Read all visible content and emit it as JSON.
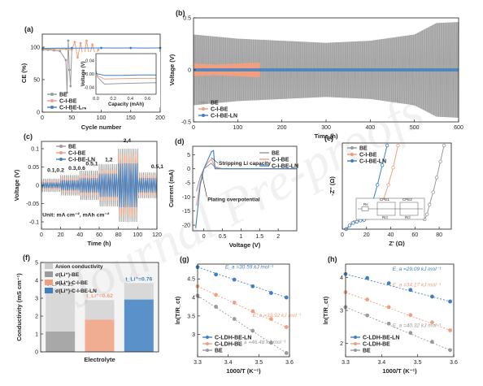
{
  "watermark": "Journal Pre-proofs",
  "colors": {
    "be": "#9a9a9a",
    "cibe": "#f0a080",
    "ln": "#3f7fc1",
    "text": "#222222"
  },
  "chart_data": [
    {
      "id": "a",
      "panel_label": "(a)",
      "type": "line",
      "xlabel": "Cycle number",
      "ylabel": "CE (%)",
      "xlim": [
        0,
        200
      ],
      "ylim": [
        0,
        120
      ],
      "xticks": [
        0,
        50,
        100,
        150,
        200
      ],
      "yticks": [
        0,
        50,
        100
      ],
      "legend": [
        "BE",
        "C-I-BE",
        "C-I-BE-LN"
      ],
      "legend_position": "bottom-left",
      "series": [
        {
          "name": "BE",
          "x": [
            1,
            10,
            20,
            30,
            40,
            42,
            44,
            46,
            48,
            50
          ],
          "y": [
            96,
            96,
            95,
            94,
            80,
            30,
            110,
            65,
            40,
            98
          ]
        },
        {
          "name": "C-I-BE",
          "x": [
            1,
            20,
            40,
            50,
            55,
            60,
            65,
            70,
            75,
            80,
            85,
            90,
            95
          ],
          "y": [
            97,
            97,
            97,
            96,
            108,
            84,
            106,
            80,
            110,
            86,
            104,
            88,
            96
          ]
        },
        {
          "name": "C-I-BE-LN",
          "x": [
            1,
            25,
            50,
            75,
            100,
            125,
            150,
            175,
            200
          ],
          "y": [
            98,
            98.5,
            98.5,
            98.6,
            98.7,
            98.6,
            98.7,
            98.6,
            98.7
          ]
        }
      ],
      "inset": {
        "xlabel": "Capacity (mAh)",
        "ylabel": "Voltage (V)",
        "xlim": [
          0,
          0.7
        ],
        "ylim": [
          -0.06,
          0.06
        ],
        "xticks": [
          0.0,
          0.2,
          0.4,
          0.6
        ],
        "yticks": [
          0.04,
          0.0,
          -0.04
        ],
        "series": [
          {
            "name": "BE",
            "x": [
              0,
              0.02,
              0.1,
              0.3,
              0.5,
              0.7
            ],
            "y": [
              0.01,
              -0.01,
              -0.03,
              -0.028,
              -0.027,
              -0.026
            ]
          },
          {
            "name": "C-I-BE",
            "x": [
              0,
              0.02,
              0.1,
              0.3,
              0.5,
              0.7
            ],
            "y": [
              0.005,
              -0.005,
              -0.015,
              -0.014,
              -0.013,
              -0.013
            ]
          },
          {
            "name": "C-I-BE-LN",
            "x": [
              0,
              0.02,
              0.1,
              0.3,
              0.5,
              0.7
            ],
            "y": [
              0.003,
              0.0,
              -0.004,
              -0.004,
              -0.003,
              -0.003
            ]
          }
        ]
      }
    },
    {
      "id": "b",
      "panel_label": "(b)",
      "type": "line",
      "xlabel": "Time (h)",
      "ylabel": "Voltage (V)",
      "xlim": [
        0,
        600
      ],
      "ylim": [
        -0.5,
        0.5
      ],
      "xticks": [
        0,
        100,
        200,
        300,
        400,
        500,
        600
      ],
      "yticks": [
        -0.5,
        0.0,
        0.5
      ],
      "legend": [
        "BE",
        "C-I-BE",
        "C-I-BE-LN"
      ],
      "legend_position": "bottom-left",
      "series": [
        {
          "name": "BE",
          "x": [
            0,
            100,
            200,
            300,
            400,
            500,
            550,
            600
          ],
          "y_amplitude": [
            0.34,
            0.3,
            0.28,
            0.26,
            0.28,
            0.34,
            0.45,
            0.46
          ]
        },
        {
          "name": "C-I-BE",
          "x": [
            0,
            50,
            100,
            150
          ],
          "y_amplitude": [
            0.06,
            0.05,
            0.06,
            0.07
          ]
        },
        {
          "name": "C-I-BE-LN",
          "x": [
            0,
            200,
            400,
            600
          ],
          "y_amplitude": [
            0.015,
            0.015,
            0.015,
            0.015
          ]
        }
      ]
    },
    {
      "id": "c",
      "panel_label": "(c)",
      "type": "line",
      "xlabel": "Time (h)",
      "ylabel": "Voltage (V)",
      "xlim": [
        0,
        120
      ],
      "ylim": [
        -0.12,
        0.12
      ],
      "xticks": [
        0,
        20,
        40,
        60,
        80,
        100,
        120
      ],
      "yticks": [
        -0.1,
        -0.05,
        0.0,
        0.05,
        0.1
      ],
      "legend": [
        "BE",
        "C-I-BE",
        "C-I-BE-LN"
      ],
      "legend_position": "top-left",
      "annotations": [
        {
          "text": "0.1,0.2",
          "x": 6,
          "y": 0.037
        },
        {
          "text": "0.3,0.6",
          "x": 28,
          "y": 0.042
        },
        {
          "text": "0.5,1",
          "x": 46,
          "y": 0.055
        },
        {
          "text": "1,2",
          "x": 66,
          "y": 0.066
        },
        {
          "text": "2,4",
          "x": 85,
          "y": 0.118
        },
        {
          "text": "0.5,1",
          "x": 114,
          "y": 0.047
        },
        {
          "text": "Unit: mA cm⁻², mAh cm⁻²",
          "x": 1,
          "y": -0.085
        }
      ],
      "segments": [
        {
          "t": [
            0,
            20
          ],
          "BE": 0.018,
          "CIBE": 0.012,
          "LN": 0.008
        },
        {
          "t": [
            20,
            40
          ],
          "BE": 0.028,
          "CIBE": 0.02,
          "LN": 0.014
        },
        {
          "t": [
            40,
            60
          ],
          "BE": 0.04,
          "CIBE": 0.028,
          "LN": 0.02
        },
        {
          "t": [
            60,
            80
          ],
          "BE": 0.058,
          "CIBE": 0.042,
          "LN": 0.032
        },
        {
          "t": [
            80,
            100
          ],
          "BE": 0.1,
          "CIBE": 0.085,
          "LN": 0.06
        },
        {
          "t": [
            100,
            120
          ],
          "BE": 0.035,
          "CIBE": 0.028,
          "LN": 0.02
        }
      ]
    },
    {
      "id": "d",
      "panel_label": "(d)",
      "type": "line",
      "xlabel": "Voltage (V)",
      "ylabel": "Current (mA)",
      "xlim": [
        -0.3,
        2.5
      ],
      "ylim": [
        -22,
        8
      ],
      "xticks": [
        0.0,
        0.5,
        1.0,
        1.5,
        2.0
      ],
      "yticks": [
        -20,
        -15,
        -10,
        -5,
        0,
        5
      ],
      "legend": [
        "BE",
        "C-I-BE",
        "C-I-BE-LN"
      ],
      "legend_position": "top-right",
      "annotations": [
        {
          "text": "Stripping Li capacity",
          "x": 0.4,
          "y": 1.4
        },
        {
          "text": "Plating overpotential",
          "x": 0.1,
          "y": -11.5
        }
      ],
      "series": [
        {
          "name": "BE",
          "x": [
            -0.2,
            -0.1,
            0.0,
            0.1,
            0.2,
            0.3,
            0.5,
            2.5
          ],
          "y": [
            -8,
            -3,
            0,
            1,
            2,
            0.5,
            0,
            0
          ]
        },
        {
          "name": "C-I-BE",
          "x": [
            -0.2,
            -0.1,
            0.0,
            0.1,
            0.2,
            0.3,
            0.5,
            2.5
          ],
          "y": [
            -13,
            -5,
            0,
            2,
            3.5,
            0.8,
            0,
            0
          ]
        },
        {
          "name": "C-I-BE-LN",
          "x": [
            -0.22,
            -0.1,
            0.0,
            0.1,
            0.2,
            0.26,
            0.3,
            2.5
          ],
          "y": [
            -21,
            -6,
            0,
            3,
            6,
            6.5,
            0,
            0
          ]
        }
      ]
    },
    {
      "id": "e",
      "panel_label": "(e)",
      "type": "scatter",
      "xlabel": "Z' (Ω)",
      "ylabel": "-Z'' (Ω)",
      "xlim": [
        0,
        90
      ],
      "ylim": [
        0,
        70
      ],
      "xticks": [
        0,
        20,
        40,
        60,
        80
      ],
      "yticks": [],
      "legend": [
        "BE",
        "C-I-BE",
        "C-I-BE-LN"
      ],
      "legend_position": "top-left",
      "circuit_labels": [
        "Rs",
        "CPE1",
        "CPE2",
        "Rct",
        "Rcl"
      ],
      "series": [
        {
          "name": "BE",
          "x": [
            3,
            10,
            20,
            30,
            40,
            50,
            58,
            64,
            68,
            70,
            72,
            75,
            78,
            81,
            84
          ],
          "y": [
            0,
            6,
            9,
            11,
            12,
            13,
            12,
            10,
            8,
            12,
            20,
            30,
            42,
            55,
            68
          ]
        },
        {
          "name": "C-I-BE",
          "x": [
            3,
            8,
            13,
            18,
            22,
            26,
            30,
            34,
            38,
            42,
            46
          ],
          "y": [
            0,
            5,
            8,
            9,
            10,
            11,
            14,
            24,
            36,
            50,
            68
          ]
        },
        {
          "name": "C-I-BE-LN",
          "x": [
            3,
            6,
            9,
            12,
            15,
            18,
            21,
            25,
            29,
            33,
            37
          ],
          "y": [
            0,
            3,
            5,
            6,
            7,
            7.5,
            10,
            22,
            36,
            52,
            68
          ]
        }
      ]
    },
    {
      "id": "f",
      "panel_label": "(f)",
      "type": "bar",
      "xlabel": "Electrolyte",
      "ylabel": "Conductivity (mS cm⁻¹)",
      "ylim": [
        0,
        5
      ],
      "yticks": [
        0,
        1,
        2,
        3,
        4,
        5
      ],
      "legend": [
        "Anion conductivity",
        "σ(Li⁺)-BE",
        "σ(Li⁺)-C-I-BE",
        "σ(Li⁺)-C-I-BE-LN"
      ],
      "legend_position": "top-left",
      "series": [
        {
          "name": "BE",
          "total": 3.55,
          "li_fraction": 0.32,
          "label": "t_Li⁺=0.32"
        },
        {
          "name": "C-I-BE",
          "total": 2.9,
          "li_fraction": 0.62,
          "label": "t_Li⁺=0.62"
        },
        {
          "name": "C-I-BE-LN",
          "total": 3.85,
          "li_fraction": 0.76,
          "label": "t_Li⁺=0.76"
        }
      ]
    },
    {
      "id": "g",
      "panel_label": "(g)",
      "type": "scatter",
      "xlabel": "1000/T (K⁻¹)",
      "ylabel": "ln(T/R_ct)",
      "xlim": [
        3.3,
        3.6
      ],
      "ylim": [
        2.4,
        4.9
      ],
      "xticks": [
        3.3,
        3.4,
        3.5,
        3.6
      ],
      "yticks": [
        3.0,
        3.5,
        4.0,
        4.5
      ],
      "legend": [
        "C-LDH-BE-LN",
        "C-LDH-BE",
        "BE"
      ],
      "legend_position": "bottom-left",
      "annotations": [
        {
          "text": "E_a =30.59 kJ mol⁻¹",
          "x": 3.39,
          "y": 4.78
        },
        {
          "text": "E_a =33.92 kJ mol⁻¹",
          "x": 3.48,
          "y": 3.48
        },
        {
          "text": "E_a =46.48 kJ mol⁻¹",
          "x": 3.43,
          "y": 2.75
        }
      ],
      "series": [
        {
          "name": "C-LDH-BE-LN",
          "x": [
            3.3,
            3.36,
            3.42,
            3.48,
            3.54,
            3.59
          ],
          "y": [
            4.82,
            4.62,
            4.48,
            4.3,
            4.12,
            4.0
          ]
        },
        {
          "name": "C-LDH-BE",
          "x": [
            3.3,
            3.36,
            3.42,
            3.48,
            3.54,
            3.59
          ],
          "y": [
            4.3,
            4.07,
            3.86,
            3.63,
            3.42,
            3.2
          ]
        },
        {
          "name": "BE",
          "x": [
            3.3,
            3.36,
            3.42,
            3.48,
            3.54,
            3.59
          ],
          "y": [
            4.05,
            3.75,
            3.42,
            3.1,
            2.78,
            2.5
          ]
        }
      ]
    },
    {
      "id": "h",
      "panel_label": "(h)",
      "type": "scatter",
      "xlabel": "1000/T (K⁻¹)",
      "ylabel": "ln(T/R_ct)",
      "xlim": [
        3.3,
        3.6
      ],
      "ylim": [
        1.6,
        4.4
      ],
      "xticks": [
        3.3,
        3.4,
        3.5,
        3.6
      ],
      "yticks": [
        2,
        3,
        4
      ],
      "legend": [
        "C-LDH-BE-LN",
        "C-LDH-BE",
        "BE"
      ],
      "legend_position": "bottom-left",
      "annotations": [
        {
          "text": "E_a =29.09 kJ mol⁻¹",
          "x": 3.43,
          "y": 4.2
        },
        {
          "text": "E_a =34.17 kJ mol⁻¹",
          "x": 3.43,
          "y": 3.72
        },
        {
          "text": "E_a =40.32 kJ mol⁻¹",
          "x": 3.43,
          "y": 2.5
        }
      ],
      "series": [
        {
          "name": "C-LDH-BE-LN",
          "x": [
            3.3,
            3.36,
            3.42,
            3.48,
            3.54,
            3.59
          ],
          "y": [
            4.1,
            3.98,
            3.82,
            3.62,
            3.42,
            3.27
          ]
        },
        {
          "name": "C-LDH-BE",
          "x": [
            3.3,
            3.36,
            3.42,
            3.48,
            3.54,
            3.59
          ],
          "y": [
            3.55,
            3.33,
            3.1,
            2.86,
            2.64,
            2.4
          ]
        },
        {
          "name": "BE",
          "x": [
            3.3,
            3.36,
            3.42,
            3.48,
            3.54,
            3.59
          ],
          "y": [
            3.1,
            2.85,
            2.6,
            2.32,
            2.05,
            1.8
          ]
        }
      ]
    }
  ]
}
